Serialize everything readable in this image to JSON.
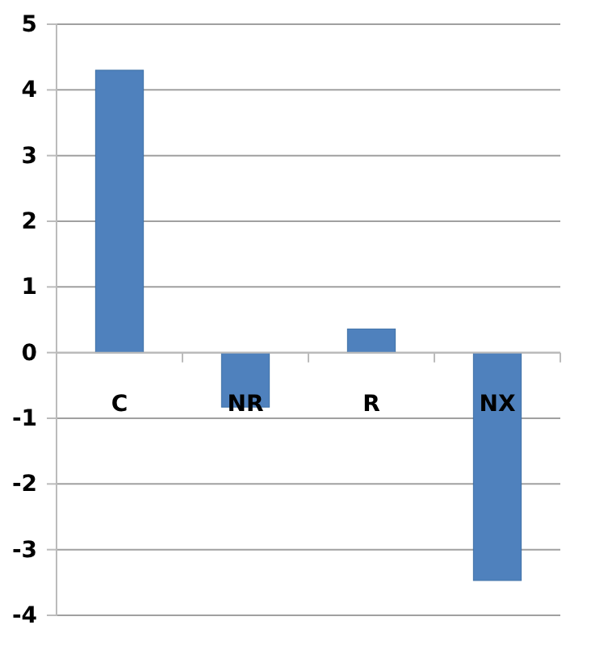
{
  "chart_data": {
    "type": "bar",
    "categories": [
      "C",
      "NR",
      "R",
      "NX"
    ],
    "values": [
      4.3,
      -0.83,
      0.36,
      -3.47
    ],
    "color": "#4f81bd",
    "ylim": [
      -4,
      5
    ],
    "yticks": [
      -4,
      -3,
      -2,
      -1,
      0,
      1,
      2,
      3,
      4,
      5
    ],
    "grid": "y"
  }
}
